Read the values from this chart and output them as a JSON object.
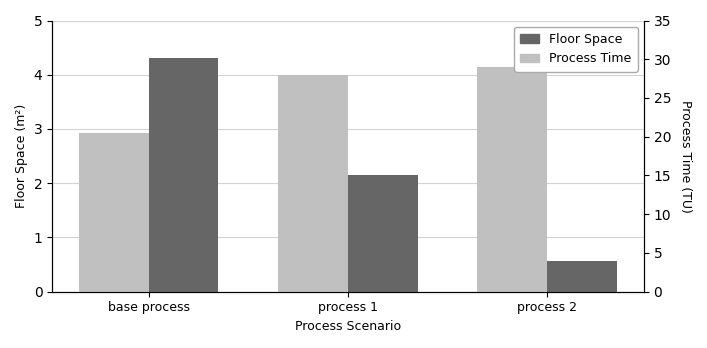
{
  "categories": [
    "base process",
    "process 1",
    "process 2"
  ],
  "floor_space": [
    4.3,
    2.15,
    0.57
  ],
  "process_time_scaled": [
    2.93,
    4.0,
    4.14
  ],
  "floor_space_color": "#666666",
  "process_time_color": "#c0c0c0",
  "left_ylim": [
    0,
    5
  ],
  "right_ylim": [
    0,
    35
  ],
  "left_yticks": [
    0,
    1,
    2,
    3,
    4,
    5
  ],
  "right_yticks": [
    0,
    5,
    10,
    15,
    20,
    25,
    30,
    35
  ],
  "ylabel_left": "Floor Space (m²)",
  "ylabel_right": "Process Time (TU)",
  "xlabel": "Process Scenario",
  "legend_labels": [
    "Floor Space",
    "Process Time"
  ],
  "bar_width": 0.35,
  "figsize": [
    7.07,
    3.48
  ],
  "dpi": 100
}
